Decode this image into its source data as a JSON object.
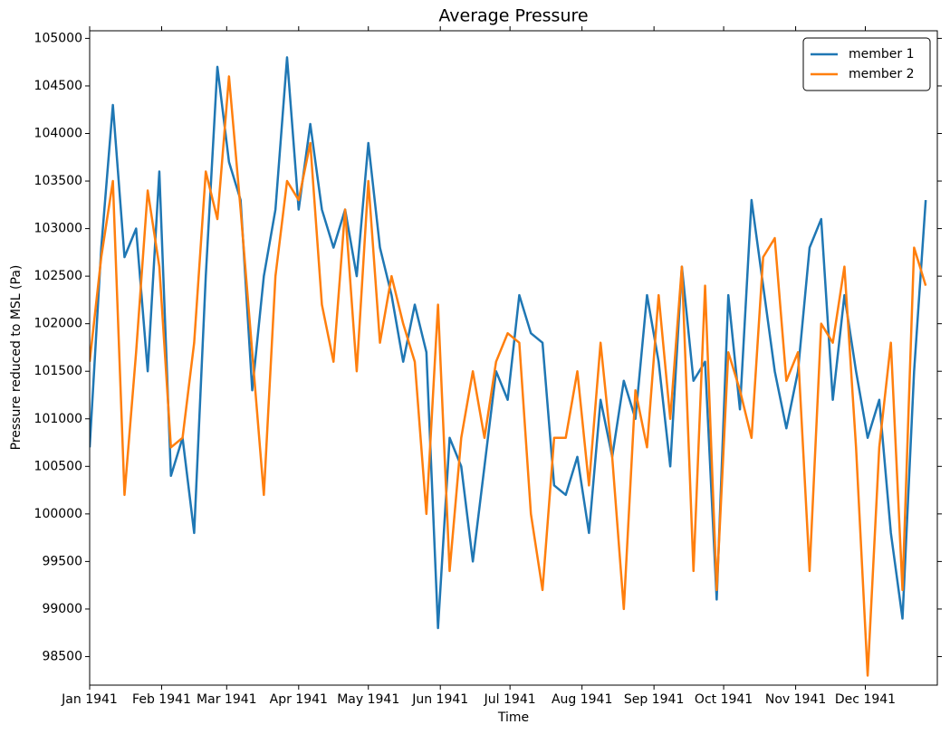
{
  "chart_data": {
    "type": "line",
    "title": "Average Pressure",
    "x_label": "Time",
    "y_label": "Pressure reduced to MSL (Pa)",
    "x": [
      "1941-01-01",
      "1941-01-06",
      "1941-01-11",
      "1941-01-16",
      "1941-01-21",
      "1941-01-26",
      "1941-01-31",
      "1941-02-05",
      "1941-02-10",
      "1941-02-15",
      "1941-02-20",
      "1941-02-25",
      "1941-03-02",
      "1941-03-07",
      "1941-03-12",
      "1941-03-17",
      "1941-03-22",
      "1941-03-27",
      "1941-04-01",
      "1941-04-06",
      "1941-04-11",
      "1941-04-16",
      "1941-04-21",
      "1941-04-26",
      "1941-05-01",
      "1941-05-06",
      "1941-05-11",
      "1941-05-16",
      "1941-05-21",
      "1941-05-26",
      "1941-05-31",
      "1941-06-05",
      "1941-06-10",
      "1941-06-15",
      "1941-06-20",
      "1941-06-25",
      "1941-06-30",
      "1941-07-05",
      "1941-07-10",
      "1941-07-15",
      "1941-07-20",
      "1941-07-25",
      "1941-07-30",
      "1941-08-04",
      "1941-08-09",
      "1941-08-14",
      "1941-08-19",
      "1941-08-24",
      "1941-08-29",
      "1941-09-03",
      "1941-09-08",
      "1941-09-13",
      "1941-09-18",
      "1941-09-23",
      "1941-09-28",
      "1941-10-03",
      "1941-10-08",
      "1941-10-13",
      "1941-10-18",
      "1941-10-23",
      "1941-10-28",
      "1941-11-02",
      "1941-11-07",
      "1941-11-12",
      "1941-11-17",
      "1941-11-22",
      "1941-11-27",
      "1941-12-02",
      "1941-12-07",
      "1941-12-12",
      "1941-12-17",
      "1941-12-22",
      "1941-12-27"
    ],
    "series": [
      {
        "name": "member 1",
        "color": "#1f77b4",
        "values": [
          100700,
          102800,
          104300,
          102700,
          103000,
          101500,
          103600,
          100400,
          100800,
          99800,
          102500,
          104700,
          103700,
          103300,
          101300,
          102500,
          103200,
          104800,
          103200,
          104100,
          103200,
          102800,
          103200,
          102500,
          103900,
          102800,
          102300,
          101600,
          102200,
          101700,
          98800,
          100800,
          100500,
          99500,
          100500,
          101500,
          101200,
          102300,
          101900,
          101800,
          100300,
          100200,
          100600,
          99800,
          101200,
          100600,
          101400,
          101000,
          102300,
          101600,
          100500,
          102600,
          101400,
          101600,
          99100,
          102300,
          101100,
          103300,
          102400,
          101500,
          100900,
          101500,
          102800,
          103100,
          101200,
          102300,
          101500,
          100800,
          101200,
          99800,
          98900,
          101500,
          103300
        ]
      },
      {
        "name": "member 2",
        "color": "#ff7f0e",
        "values": [
          101600,
          102700,
          103500,
          100200,
          101700,
          103400,
          102600,
          100700,
          100800,
          101800,
          103600,
          103100,
          104600,
          103200,
          101700,
          100200,
          102500,
          103500,
          103300,
          103900,
          102200,
          101600,
          103200,
          101500,
          103500,
          101800,
          102500,
          102000,
          101600,
          100000,
          102200,
          99400,
          100800,
          101500,
          100800,
          101600,
          101900,
          101800,
          100000,
          99200,
          100800,
          100800,
          101500,
          100300,
          101800,
          100600,
          99000,
          101300,
          100700,
          102300,
          101000,
          102600,
          99400,
          102400,
          99200,
          101700,
          101300,
          100800,
          102700,
          102900,
          101400,
          101700,
          99400,
          102000,
          101800,
          102600,
          100700,
          98300,
          100700,
          101800,
          99200,
          102800,
          102400
        ]
      }
    ],
    "xlim": [
      "1941-01-01",
      "1942-01-01"
    ],
    "xticks": [
      {
        "value": "1941-01-01",
        "label": "Jan 1941"
      },
      {
        "value": "1941-02-01",
        "label": "Feb 1941"
      },
      {
        "value": "1941-03-01",
        "label": "Mar 1941"
      },
      {
        "value": "1941-04-01",
        "label": "Apr 1941"
      },
      {
        "value": "1941-05-01",
        "label": "May 1941"
      },
      {
        "value": "1941-06-01",
        "label": "Jun 1941"
      },
      {
        "value": "1941-07-01",
        "label": "Jul 1941"
      },
      {
        "value": "1941-08-01",
        "label": "Aug 1941"
      },
      {
        "value": "1941-09-01",
        "label": "Sep 1941"
      },
      {
        "value": "1941-10-01",
        "label": "Oct 1941"
      },
      {
        "value": "1941-11-01",
        "label": "Nov 1941"
      },
      {
        "value": "1941-12-01",
        "label": "Dec 1941"
      }
    ],
    "ylim": [
      98200,
      105080
    ],
    "yticks": [
      98500,
      99000,
      99500,
      100000,
      100500,
      101000,
      101500,
      102000,
      102500,
      103000,
      103500,
      104000,
      104500,
      105000
    ],
    "legend": "upper right"
  }
}
